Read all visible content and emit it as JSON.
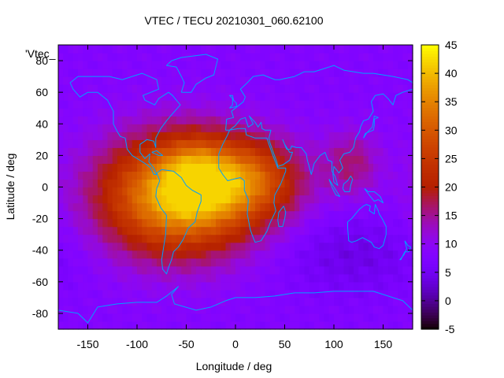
{
  "chart_data": {
    "type": "heatmap",
    "title": "VTEC / TECU 20210301_060.62100",
    "xlabel": "Longitude / deg",
    "ylabel": "Latitude / deg",
    "key_label": "'Vtec_",
    "xlim": [
      -180,
      180
    ],
    "ylim": [
      -90,
      90
    ],
    "x_ticks": [
      -150,
      -100,
      -50,
      0,
      50,
      100,
      150
    ],
    "y_ticks": [
      -80,
      -60,
      -40,
      -20,
      0,
      20,
      40,
      60,
      80
    ],
    "colorbar": {
      "range": [
        -5,
        45
      ],
      "ticks": [
        -5,
        0,
        5,
        10,
        15,
        20,
        25,
        30,
        35,
        40,
        45
      ]
    },
    "grid_step_deg": 5,
    "background_tec": 8,
    "peak_tec": 42,
    "anomaly_blobs": [
      {
        "lon": -58,
        "lat": -5,
        "amp": 32,
        "sigma_lon": 55,
        "sigma_lat": 26
      },
      {
        "lon": -42,
        "lat": 8,
        "amp": 8,
        "sigma_lon": 22,
        "sigma_lat": 16
      },
      {
        "lon": 15,
        "lat": 5,
        "amp": 16,
        "sigma_lon": 38,
        "sigma_lat": 18
      },
      {
        "lon": 118,
        "lat": 15,
        "amp": 8,
        "sigma_lon": 20,
        "sigma_lat": 15
      }
    ],
    "low_regions": [
      {
        "lon": 120,
        "lat": -42,
        "amp": -4,
        "sigma_lon": 55,
        "sigma_lat": 18
      }
    ],
    "colors": {
      "coastline": "#00a0ff",
      "frame": "#000000"
    }
  }
}
